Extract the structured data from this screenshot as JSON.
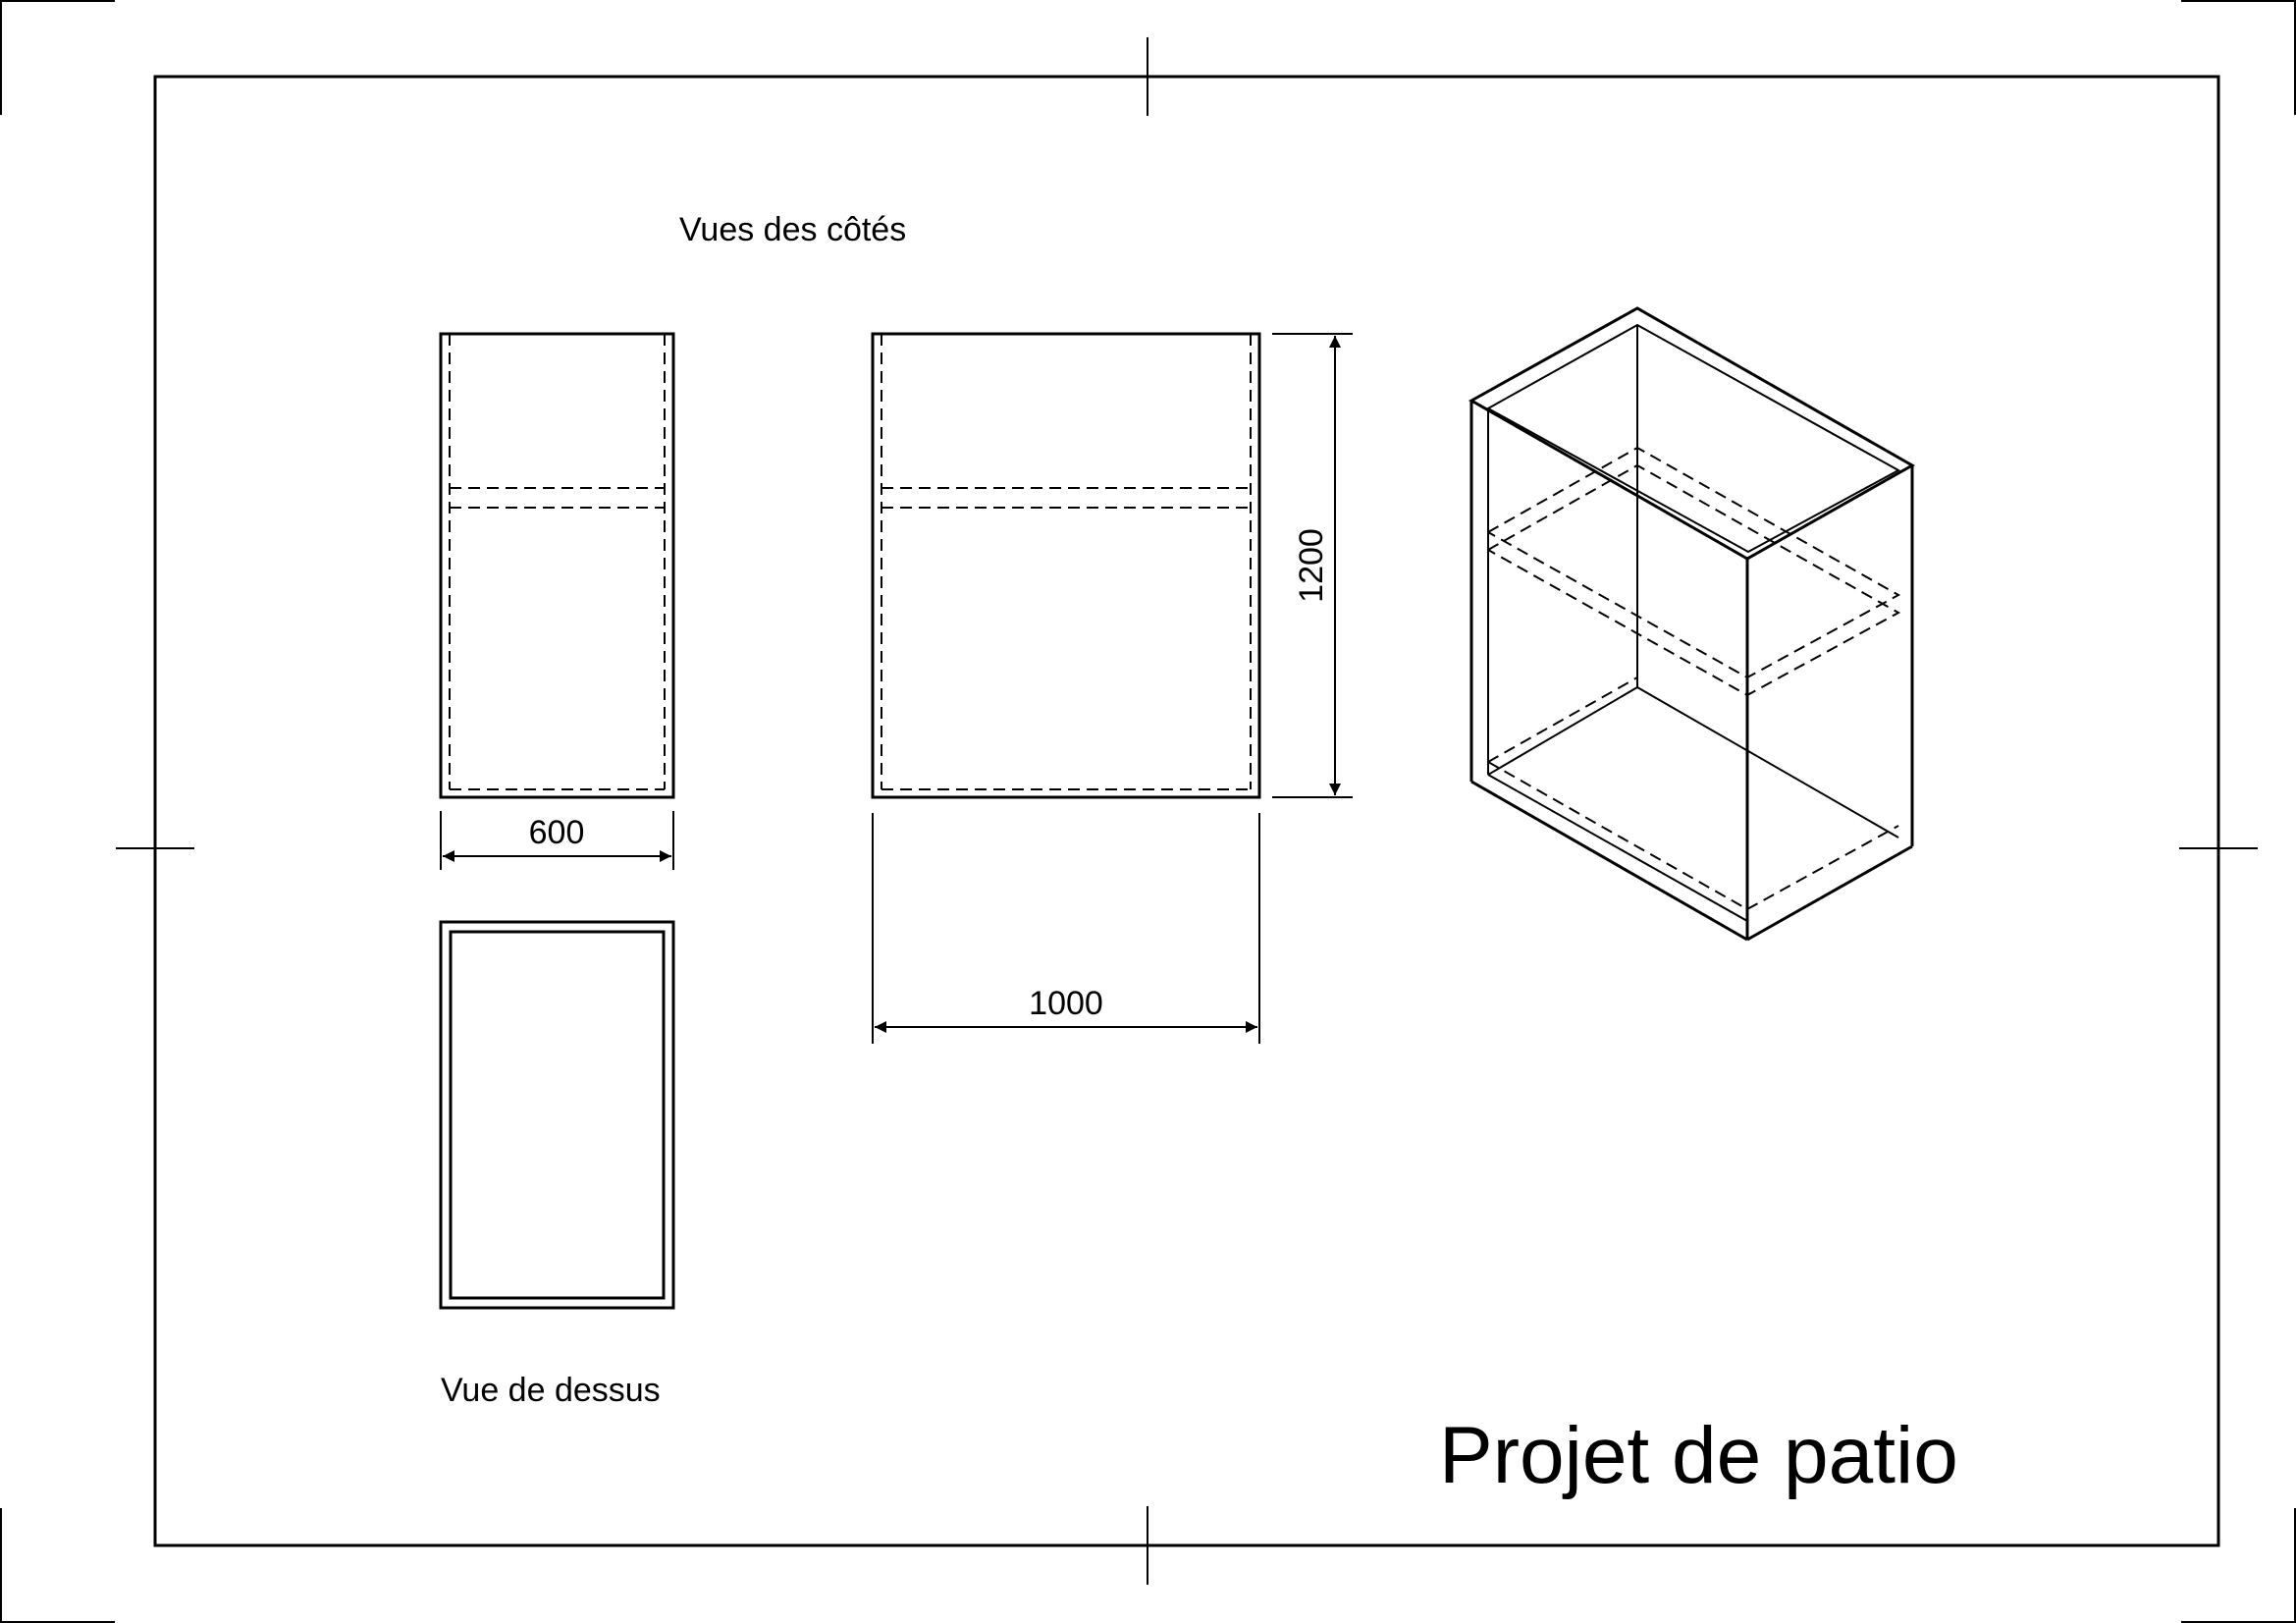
{
  "drawing": {
    "title": "Projet de patio",
    "labels": {
      "side_views": "Vues des côtés",
      "top_view": "Vue de dessus"
    },
    "dimensions": {
      "width_side": "600",
      "width_front": "1000",
      "height": "1200"
    }
  }
}
